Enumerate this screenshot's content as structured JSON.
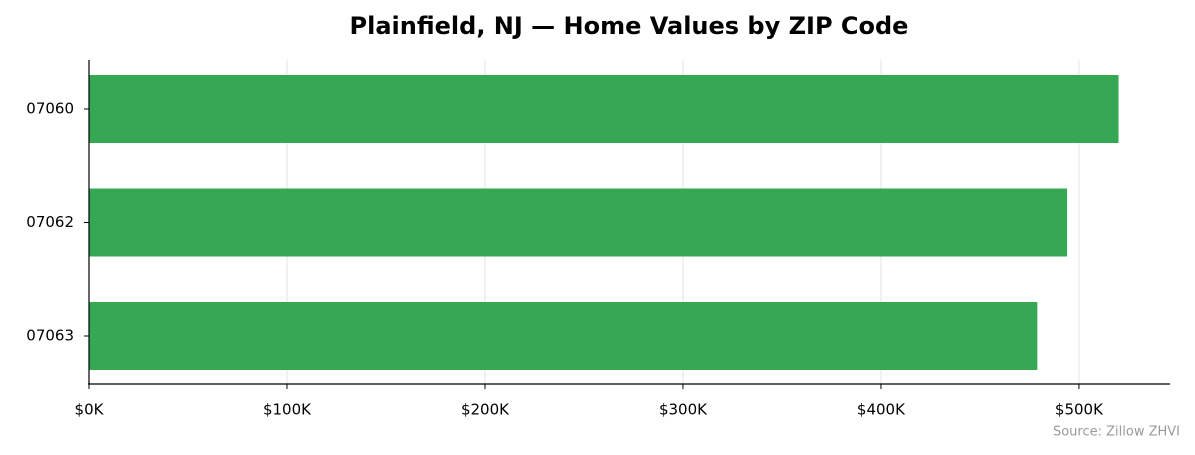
{
  "chart_data": {
    "type": "bar",
    "orientation": "horizontal",
    "title": "Plainfield, NJ — Home Values by ZIP Code",
    "categories": [
      "07060",
      "07062",
      "07063"
    ],
    "values": [
      520000,
      494000,
      479000
    ],
    "color": "#36a853",
    "xlim": [
      0,
      546000
    ],
    "xticks": [
      {
        "value": 0,
        "label": "$0K"
      },
      {
        "value": 100000,
        "label": "$100K"
      },
      {
        "value": 200000,
        "label": "$200K"
      },
      {
        "value": 300000,
        "label": "$300K"
      },
      {
        "value": 400000,
        "label": "$400K"
      },
      {
        "value": 500000,
        "label": "$500K"
      }
    ],
    "grid": true,
    "source": "Source: Zillow ZHVI"
  }
}
